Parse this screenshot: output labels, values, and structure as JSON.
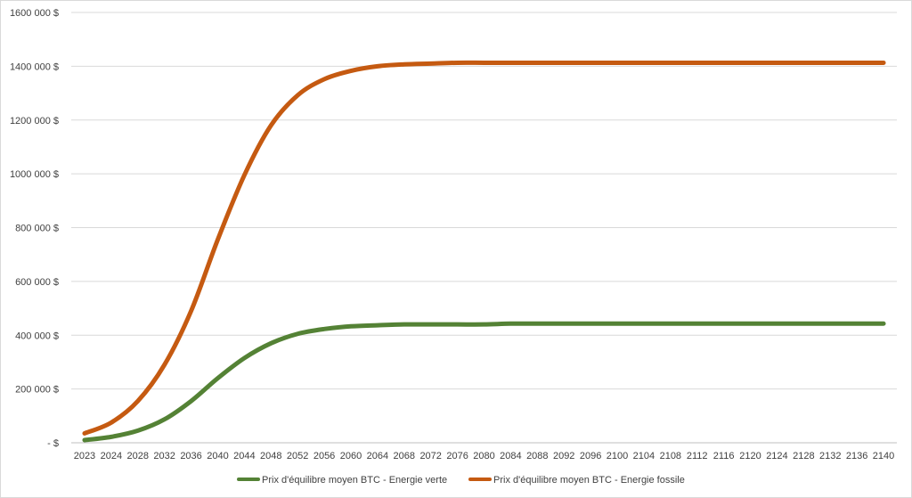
{
  "chart_data": {
    "type": "line",
    "title": "",
    "xlabel": "",
    "ylabel": "",
    "ylim": [
      0,
      1600000
    ],
    "y_ticks": [
      0,
      200000,
      400000,
      600000,
      800000,
      1000000,
      1200000,
      1400000,
      1600000
    ],
    "y_tick_labels": [
      "-   $",
      "200 000  $",
      "400 000  $",
      "600 000  $",
      "800 000  $",
      "1000 000  $",
      "1200 000  $",
      "1400 000  $",
      "1600 000  $"
    ],
    "categories": [
      "2023",
      "2024",
      "2028",
      "2032",
      "2036",
      "2040",
      "2044",
      "2048",
      "2052",
      "2056",
      "2060",
      "2064",
      "2068",
      "2072",
      "2076",
      "2080",
      "2084",
      "2088",
      "2092",
      "2096",
      "2100",
      "2104",
      "2108",
      "2112",
      "2116",
      "2120",
      "2124",
      "2128",
      "2132",
      "2136",
      "2140"
    ],
    "grid": true,
    "legend_position": "bottom",
    "series": [
      {
        "name": "Prix d'équilibre moyen BTC - Energie verte",
        "color": "#548235",
        "values": [
          10000,
          22000,
          45000,
          87000,
          155000,
          240000,
          315000,
          370000,
          405000,
          423000,
          433000,
          437000,
          440000,
          440000,
          440000,
          440000,
          443000,
          443000,
          443000,
          443000,
          443000,
          443000,
          443000,
          443000,
          443000,
          443000,
          443000,
          443000,
          443000,
          443000,
          443000
        ]
      },
      {
        "name": "Prix d'équilibre moyen BTC - Energie fossile",
        "color": "#C55A11",
        "values": [
          35000,
          75000,
          155000,
          290000,
          490000,
          755000,
          995000,
          1180000,
          1292000,
          1352000,
          1383000,
          1400000,
          1407000,
          1410000,
          1413000,
          1413000,
          1413000,
          1413000,
          1413000,
          1413000,
          1413000,
          1413000,
          1413000,
          1413000,
          1413000,
          1413000,
          1413000,
          1413000,
          1413000,
          1413000,
          1413000
        ]
      }
    ]
  }
}
